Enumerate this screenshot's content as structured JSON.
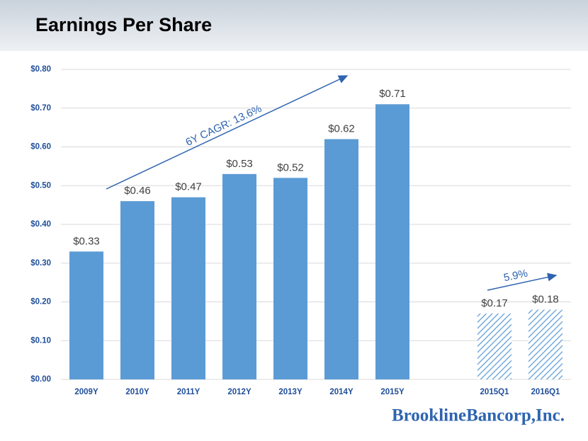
{
  "chart_data": {
    "type": "bar",
    "title": "Earnings Per Share",
    "categories": [
      "2009Y",
      "2010Y",
      "2011Y",
      "2012Y",
      "2013Y",
      "2014Y",
      "2015Y",
      null,
      "2015Q1",
      "2016Q1"
    ],
    "values": [
      0.33,
      0.46,
      0.47,
      0.53,
      0.52,
      0.62,
      0.71,
      null,
      0.17,
      0.18
    ],
    "value_labels": [
      "$0.33",
      "$0.46",
      "$0.47",
      "$0.53",
      "$0.52",
      "$0.62",
      "$0.71",
      null,
      "$0.17",
      "$0.18"
    ],
    "fills": [
      "solid",
      "solid",
      "solid",
      "solid",
      "solid",
      "solid",
      "solid",
      null,
      "hatched",
      "hatched"
    ],
    "color": "#5b9bd5",
    "ylim": [
      0,
      0.8
    ],
    "yticks": [
      {
        "value": 0,
        "label": "$0.00"
      },
      {
        "value": 0.1,
        "label": "$0.10"
      },
      {
        "value": 0.2,
        "label": "$0.20"
      },
      {
        "value": 0.3,
        "label": "$0.30"
      },
      {
        "value": 0.4,
        "label": "$0.40"
      },
      {
        "value": 0.5,
        "label": "$0.50"
      },
      {
        "value": 0.6,
        "label": "$0.60"
      },
      {
        "value": 0.7,
        "label": "$0.70"
      },
      {
        "value": 0.8,
        "label": "$0.80"
      }
    ],
    "grid": true,
    "annotations": [
      "6Y CAGR: 13.6%",
      "5.9%"
    ],
    "logo": "BrooklineBancorp,Inc."
  }
}
